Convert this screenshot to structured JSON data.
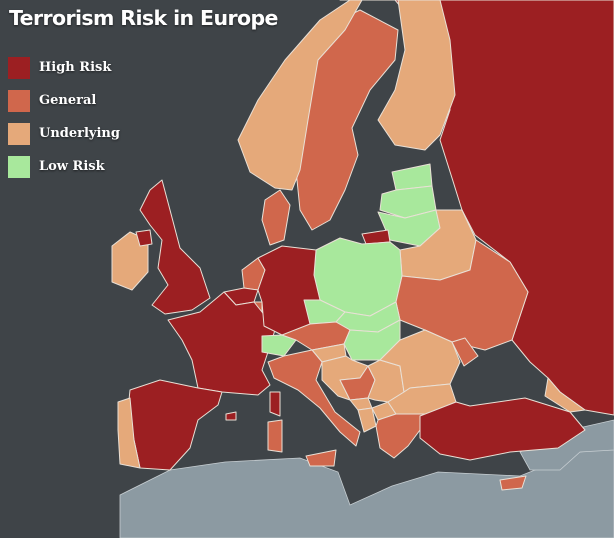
{
  "title": "Terrorism Risk in Europe",
  "colors": {
    "sea": "#3f4448",
    "africa": "#8c9aa2",
    "border": "#e9e0d6"
  },
  "legend": [
    {
      "key": "high",
      "label": "High Risk",
      "color": "#9c1f22"
    },
    {
      "key": "general",
      "label": "General",
      "color": "#d0674c"
    },
    {
      "key": "underlying",
      "label": "Underlying",
      "color": "#e5a97a"
    },
    {
      "key": "low",
      "label": "Low Risk",
      "color": "#a8e89c"
    }
  ],
  "regions": [
    {
      "name": "Russia",
      "risk": "high"
    },
    {
      "name": "Finland",
      "risk": "underlying"
    },
    {
      "name": "Sweden",
      "risk": "general"
    },
    {
      "name": "Norway",
      "risk": "underlying"
    },
    {
      "name": "Denmark",
      "risk": "general"
    },
    {
      "name": "Estonia",
      "risk": "low"
    },
    {
      "name": "Latvia",
      "risk": "low"
    },
    {
      "name": "Lithuania",
      "risk": "low"
    },
    {
      "name": "Kaliningrad",
      "risk": "high"
    },
    {
      "name": "Belarus",
      "risk": "underlying"
    },
    {
      "name": "Poland",
      "risk": "low"
    },
    {
      "name": "Ukraine",
      "risk": "general"
    },
    {
      "name": "Ireland",
      "risk": "underlying"
    },
    {
      "name": "Northern Ireland",
      "risk": "high"
    },
    {
      "name": "United Kingdom",
      "risk": "high"
    },
    {
      "name": "Netherlands",
      "risk": "general"
    },
    {
      "name": "Belgium",
      "risk": "high"
    },
    {
      "name": "Luxembourg",
      "risk": "general"
    },
    {
      "name": "France",
      "risk": "high"
    },
    {
      "name": "Germany",
      "risk": "high"
    },
    {
      "name": "Czech Republic",
      "risk": "low"
    },
    {
      "name": "Slovakia",
      "risk": "low"
    },
    {
      "name": "Switzerland",
      "risk": "low"
    },
    {
      "name": "Austria",
      "risk": "general"
    },
    {
      "name": "Hungary",
      "risk": "low"
    },
    {
      "name": "Slovenia",
      "risk": "underlying"
    },
    {
      "name": "Italy",
      "risk": "general"
    },
    {
      "name": "Spain",
      "risk": "high"
    },
    {
      "name": "Portugal",
      "risk": "underlying"
    },
    {
      "name": "Croatia",
      "risk": "underlying"
    },
    {
      "name": "Bosnia and Herzegovina",
      "risk": "general"
    },
    {
      "name": "Serbia",
      "risk": "underlying"
    },
    {
      "name": "Montenegro",
      "risk": "underlying"
    },
    {
      "name": "Albania",
      "risk": "underlying"
    },
    {
      "name": "North Macedonia",
      "risk": "underlying"
    },
    {
      "name": "Romania",
      "risk": "underlying"
    },
    {
      "name": "Moldova",
      "risk": "general"
    },
    {
      "name": "Bulgaria",
      "risk": "underlying"
    },
    {
      "name": "Greece",
      "risk": "general"
    },
    {
      "name": "Turkey",
      "risk": "high"
    },
    {
      "name": "Georgia",
      "risk": "underlying"
    },
    {
      "name": "Corsica",
      "risk": "high"
    },
    {
      "name": "Sardinia",
      "risk": "general"
    },
    {
      "name": "Sicily",
      "risk": "general"
    },
    {
      "name": "Cyprus",
      "risk": "general"
    },
    {
      "name": "Mallorca",
      "risk": "high"
    }
  ]
}
